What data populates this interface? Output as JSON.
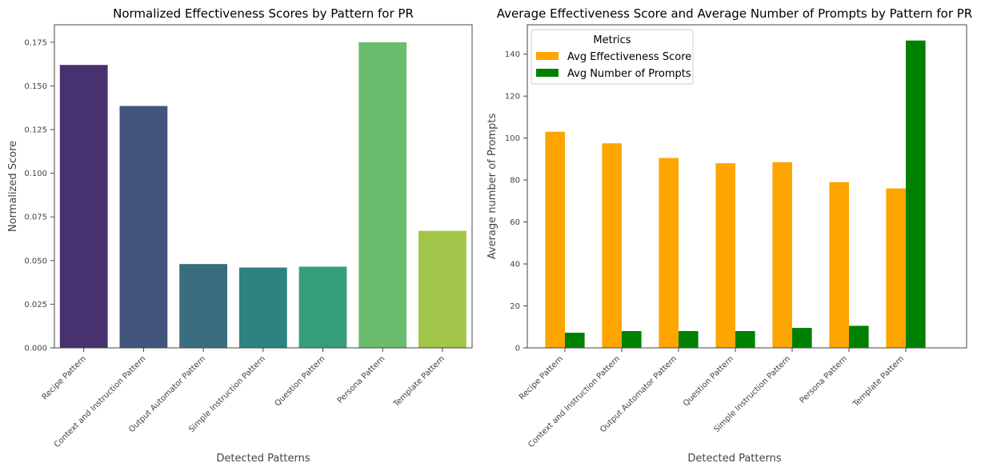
{
  "chart_data": [
    {
      "type": "bar",
      "title": "Normalized Effectiveness Scores by Pattern for PR",
      "xlabel": "Detected Patterns",
      "ylabel": "Normalized Score",
      "categories": [
        "Recipe Pattern",
        "Context and Instruction Pattern",
        "Output Automator Pattern",
        "Simple Instruction Pattern",
        "Question Pattern",
        "Persona Pattern",
        "Template Pattern"
      ],
      "values": [
        0.162,
        0.1385,
        0.048,
        0.046,
        0.0465,
        0.175,
        0.067
      ],
      "colors": [
        "#48316f",
        "#43557d",
        "#386e7e",
        "#2c837f",
        "#379e7b",
        "#6cbc6e",
        "#a1c64a"
      ],
      "ylim": [
        0,
        0.185
      ],
      "yticks": [
        "0.000",
        "0.025",
        "0.050",
        "0.075",
        "0.100",
        "0.125",
        "0.150",
        "0.175"
      ],
      "grid": false
    },
    {
      "type": "bar",
      "title": "Average Effectiveness Score and Average Number of Prompts by Pattern for PR",
      "xlabel": "Detected Patterns",
      "ylabel": "Average number of Prompts",
      "categories": [
        "Recipe Pattern",
        "Context and Instruction Pattern",
        "Output Automator Pattern",
        "Question Pattern",
        "Simple Instruction Pattern",
        "Persona Pattern",
        "Template Pattern"
      ],
      "series": [
        {
          "name": "Avg Effectiveness Score",
          "color": "#ffa500",
          "values": [
            103,
            97.5,
            90.5,
            88,
            88.5,
            79,
            76
          ]
        },
        {
          "name": "Avg Number of Prompts",
          "color": "#008000",
          "values": [
            7.2,
            8,
            8,
            8,
            9.5,
            10.5,
            146.5
          ]
        }
      ],
      "ylim": [
        0,
        154
      ],
      "yticks": [
        "0",
        "20",
        "40",
        "60",
        "80",
        "100",
        "120",
        "140"
      ],
      "legend_title": "Metrics",
      "legend_position": "top-left",
      "grid": false
    }
  ]
}
